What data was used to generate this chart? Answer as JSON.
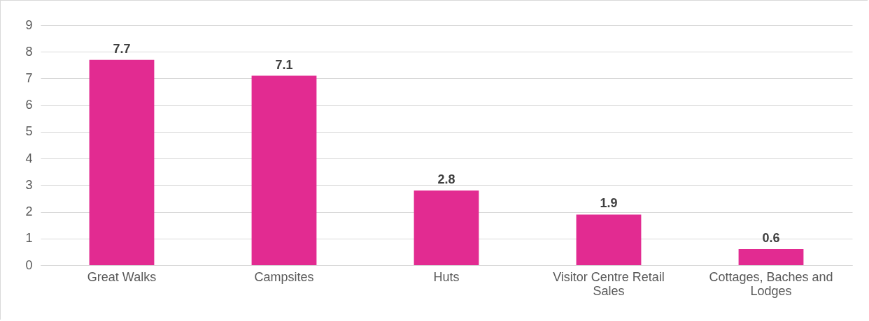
{
  "chart_data": {
    "type": "bar",
    "categories": [
      "Great Walks",
      "Campsites",
      "Huts",
      "Visitor Centre Retail Sales",
      "Cottages, Baches and Lodges"
    ],
    "values": [
      7.7,
      7.1,
      2.8,
      1.9,
      0.6
    ],
    "color": "#e22b91",
    "ylim": [
      0,
      9
    ],
    "yticks": [
      0,
      1,
      2,
      3,
      4,
      5,
      6,
      7,
      8,
      9
    ],
    "grid": "y",
    "data_labels": true
  }
}
